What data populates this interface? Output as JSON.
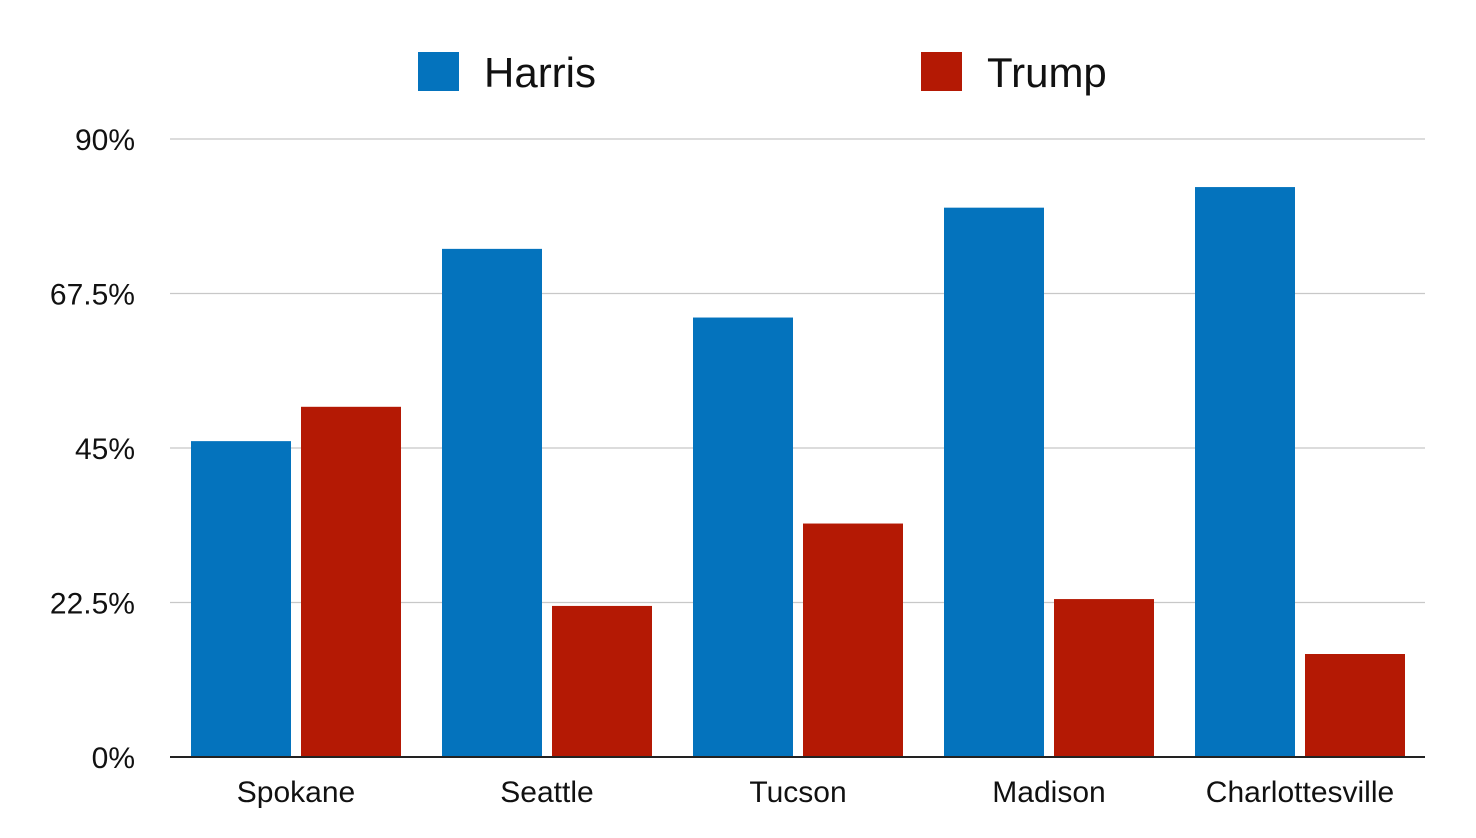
{
  "chart_data": {
    "type": "bar",
    "categories": [
      "Spokane",
      "Seattle",
      "Tucson",
      "Madison",
      "Charlottesville"
    ],
    "series": [
      {
        "name": "Harris",
        "color": "#0473BD",
        "values": [
          46,
          74,
          64,
          80,
          83
        ]
      },
      {
        "name": "Trump",
        "color": "#B41904",
        "values": [
          51,
          22,
          34,
          23,
          15
        ]
      }
    ],
    "yticks": [
      "0%",
      "22.5%",
      "45%",
      "67.5%",
      "90%"
    ],
    "ytick_values": [
      0,
      22.5,
      45,
      67.5,
      90
    ],
    "ylim": [
      0,
      90
    ],
    "grid": true,
    "legend_position": "top-center"
  }
}
